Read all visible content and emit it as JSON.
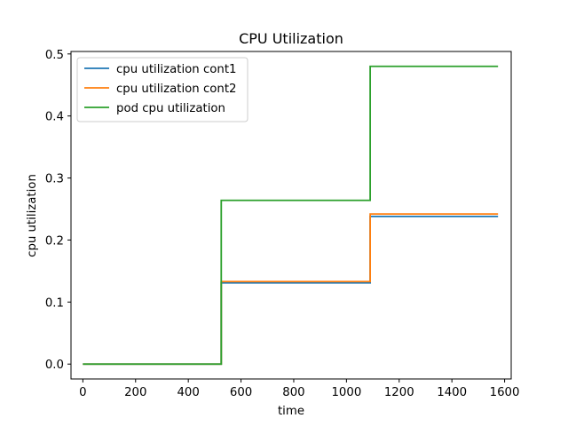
{
  "chart_data": {
    "type": "line",
    "title": "CPU Utilization",
    "xlabel": "time",
    "ylabel": "cpu utilization",
    "xlim": [
      -45,
      1625
    ],
    "ylim": [
      -0.024,
      0.504
    ],
    "xticks": [
      0,
      200,
      400,
      600,
      800,
      1000,
      1200,
      1400,
      1600
    ],
    "xtick_labels": [
      "0",
      "200",
      "400",
      "600",
      "800",
      "1000",
      "1200",
      "1400",
      "1600"
    ],
    "yticks": [
      0.0,
      0.1,
      0.2,
      0.3,
      0.4,
      0.5
    ],
    "ytick_labels": [
      "0.0",
      "0.1",
      "0.2",
      "0.3",
      "0.4",
      "0.5"
    ],
    "grid": false,
    "legend_position": "top-left",
    "series": [
      {
        "name": "cpu utilization cont1",
        "color": "#1f77b4",
        "x": [
          0,
          525,
          525,
          1090,
          1090,
          1575
        ],
        "y": [
          0,
          0,
          0.131,
          0.131,
          0.238,
          0.238
        ]
      },
      {
        "name": "cpu utilization cont2",
        "color": "#ff7f0e",
        "x": [
          0,
          525,
          525,
          1090,
          1090,
          1575
        ],
        "y": [
          0,
          0,
          0.133,
          0.133,
          0.242,
          0.242
        ]
      },
      {
        "name": "pod cpu utilization",
        "color": "#2ca02c",
        "x": [
          0,
          525,
          525,
          1090,
          1090,
          1575
        ],
        "y": [
          0,
          0,
          0.264,
          0.264,
          0.48,
          0.48
        ]
      }
    ]
  }
}
